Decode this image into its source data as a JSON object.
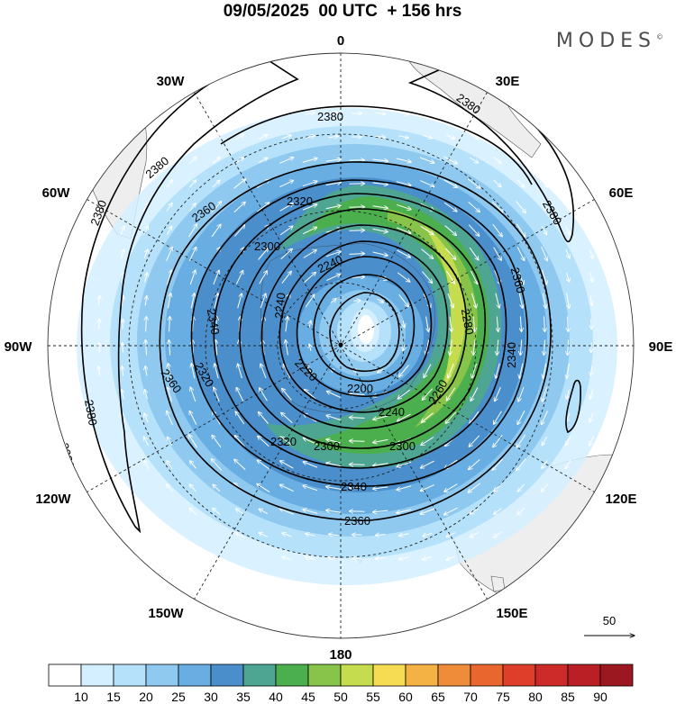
{
  "header": {
    "title": "09/05/2025  00 UTC  + 156 hrs",
    "brand": "MODES"
  },
  "map": {
    "projection": "polar-stereographic-south",
    "longitude_labels": [
      "0",
      "30E",
      "60E",
      "90E",
      "120E",
      "150E",
      "180",
      "150W",
      "120W",
      "90W",
      "60W",
      "30W"
    ],
    "contour_labels": [
      "2380",
      "2380",
      "2380",
      "2380",
      "2380",
      "2380",
      "2380",
      "2360",
      "2360",
      "2360",
      "2360",
      "2340",
      "2340",
      "2340",
      "2320",
      "2320",
      "2320",
      "2300",
      "2300",
      "2300",
      "2280",
      "2260",
      "2240",
      "2240",
      "2240",
      "2220",
      "2200"
    ],
    "contour_interval": 20,
    "shading_variable": "wind speed",
    "vector_reference_value": "50"
  },
  "colorbar": {
    "ticks": [
      "10",
      "15",
      "20",
      "25",
      "30",
      "35",
      "40",
      "45",
      "50",
      "55",
      "60",
      "65",
      "70",
      "75",
      "80",
      "85",
      "90"
    ],
    "colors": [
      "#ffffff",
      "#d4efff",
      "#b5e2fa",
      "#8fc9ef",
      "#68aee2",
      "#4a8fcb",
      "#4da592",
      "#4caf4e",
      "#89c44a",
      "#c4dc4e",
      "#f5dc52",
      "#f4b244",
      "#ef8c3a",
      "#e9662f",
      "#de3e2a",
      "#cd2a2a",
      "#b91f25",
      "#9c1820"
    ]
  }
}
